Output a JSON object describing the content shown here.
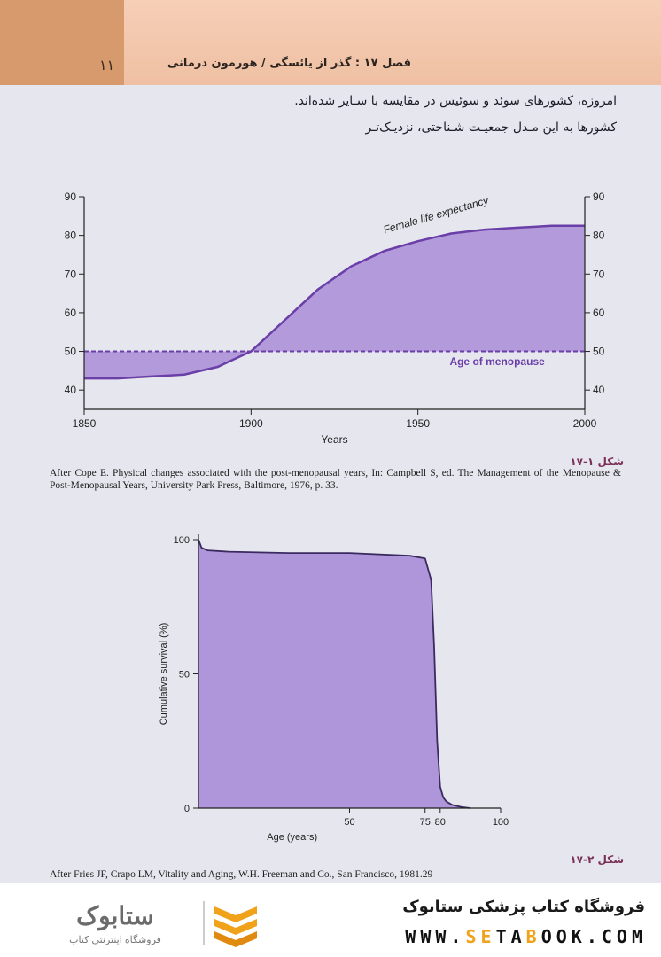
{
  "header": {
    "page_number": "۱۱",
    "chapter_title": "فصل ۱۷ : گذر از یائسگی / هورمون درمانی"
  },
  "body_text": {
    "line1": "امروزه، کشورهای سوئد و سوئیس در مقایسه با سـایر   شده‌اند.",
    "line2": "کشورها به این مـدل جمعیـت شـناختی، نزدیـک‌تـر"
  },
  "figure1": {
    "label": "شکل ۱-۱۷",
    "caption": "After Cope E. Physical changes associated with the post-menopausal years, In: Campbell S, ed. The Management of the Menopause & Post-Menopausal Years, University Park Press, Baltimore, 1976, p. 33."
  },
  "figure2": {
    "label": "شکل ۲-۱۷",
    "caption": "After Fries JF, Crapo LM, Vitality and Aging, W.H. Freeman and Co., San Francisco, 1981.29"
  },
  "chart_data": [
    {
      "type": "area",
      "title": "",
      "xlabel": "Years",
      "ylabel": "",
      "xlim": [
        1850,
        2000
      ],
      "ylim": [
        35,
        90
      ],
      "x_ticks": [
        1850,
        1900,
        1950,
        2000
      ],
      "y_ticks": [
        40,
        50,
        60,
        70,
        80,
        90
      ],
      "y_ticks_right": [
        40,
        50,
        60,
        70,
        80,
        90
      ],
      "series": [
        {
          "name": "Female life expectancy",
          "style": "solid",
          "x": [
            1850,
            1860,
            1870,
            1880,
            1890,
            1895,
            1900,
            1910,
            1920,
            1930,
            1940,
            1950,
            1960,
            1970,
            1980,
            1990,
            2000
          ],
          "y": [
            43,
            43,
            43.5,
            44,
            46,
            48,
            50,
            58,
            66,
            72,
            76,
            78.5,
            80.5,
            81.5,
            82,
            82.5,
            82.5
          ]
        },
        {
          "name": "Age of menopause",
          "style": "dashed",
          "x": [
            1850,
            2000
          ],
          "y": [
            50,
            50
          ]
        }
      ],
      "fill_color": "#a98cd6",
      "line_color": "#6a3fa8",
      "grid": false
    },
    {
      "type": "area",
      "title": "",
      "xlabel": "Age (years)",
      "ylabel": "Cumulative survival (%)",
      "xlim": [
        0,
        100
      ],
      "ylim": [
        0,
        100
      ],
      "x_ticks": [
        50,
        75,
        80,
        100
      ],
      "y_ticks": [
        0,
        50,
        100
      ],
      "series": [
        {
          "name": "",
          "x": [
            0,
            1,
            3,
            10,
            30,
            50,
            70,
            75,
            77,
            78,
            79,
            80,
            81,
            82,
            84,
            87,
            90
          ],
          "y": [
            100,
            97,
            96,
            95.5,
            95,
            95,
            94,
            93,
            85,
            60,
            25,
            8,
            4,
            2.5,
            1.2,
            0.4,
            0
          ]
        }
      ],
      "fill_color": "#a98cd6",
      "line_color": "#3a2a60",
      "grid": false
    }
  ],
  "footer": {
    "store_name": "فروشگاه کتاب پزشکی ستابوک",
    "url_pre": "WWW.",
    "url_accent1": "SE",
    "url_mid": "TA",
    "url_accent2": "B",
    "url_post": "OOK.COM",
    "logo_text": "فروشگاه اینترنتی کتاب",
    "logo_mark": "ستابوک"
  }
}
